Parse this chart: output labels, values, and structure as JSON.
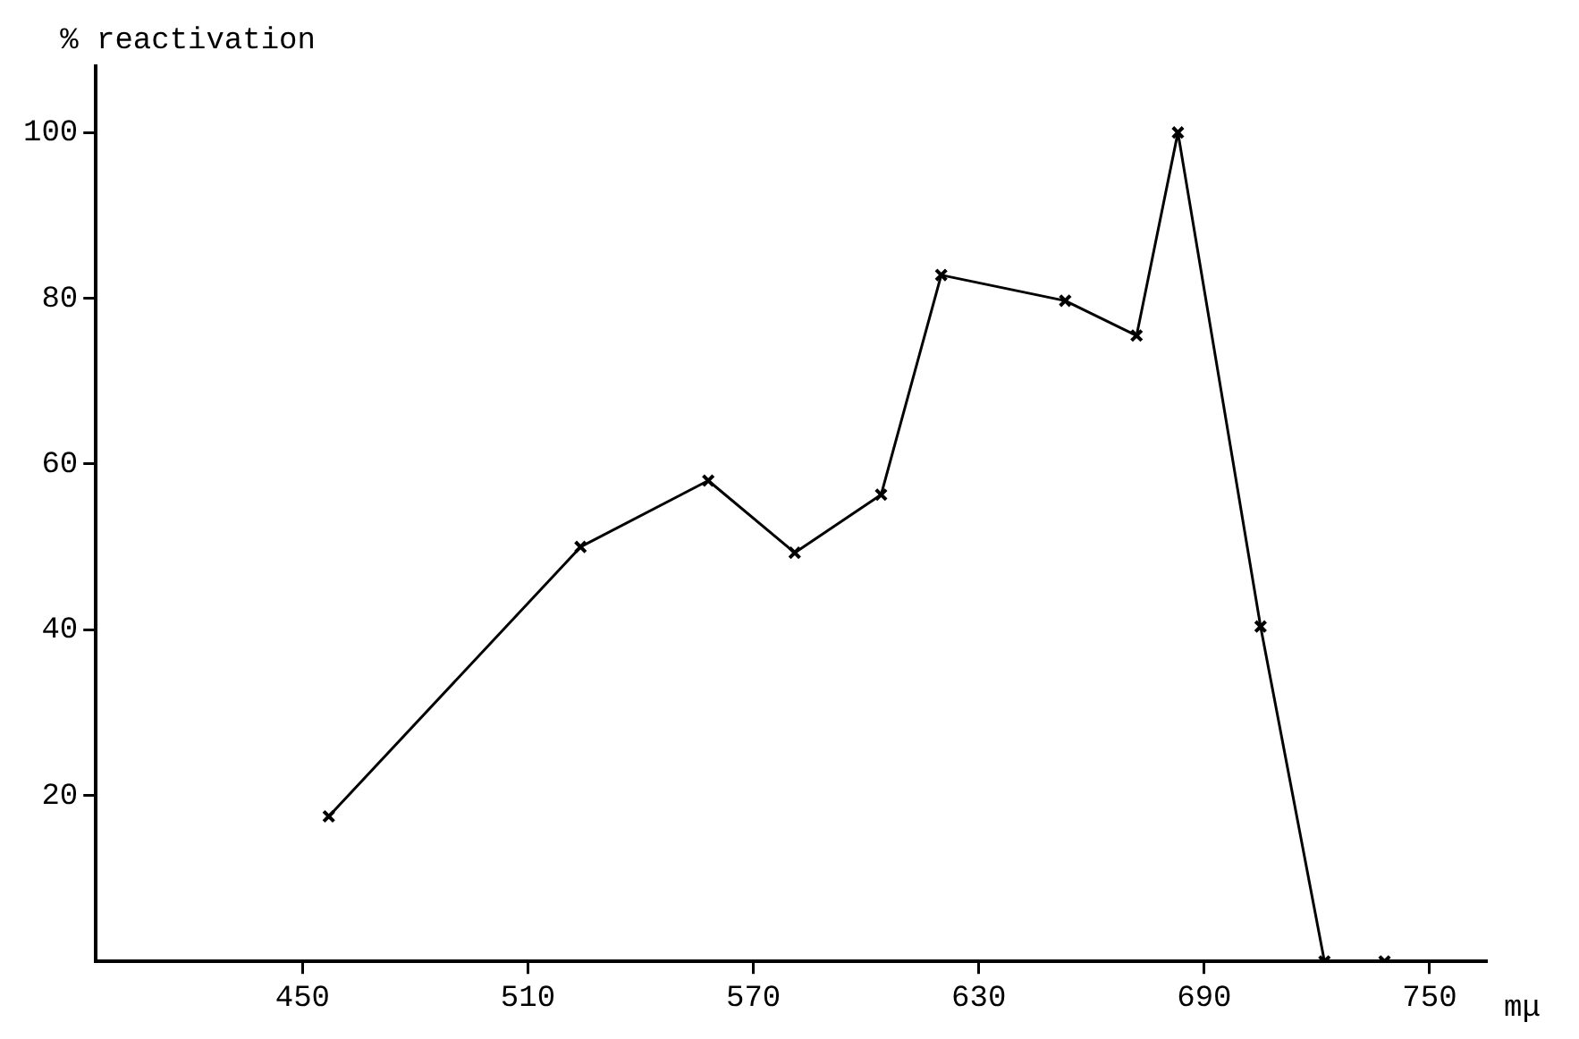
{
  "chart_data": {
    "type": "line",
    "xlabel": "mμ",
    "ylabel": "% reactivation",
    "x": [
      457,
      524,
      558,
      581,
      604,
      620,
      653,
      672,
      683,
      705,
      722,
      738
    ],
    "series": [
      {
        "color": "#000000",
        "values": [
          17.5,
          50,
          58,
          49.3,
          56.3,
          82.8,
          79.7,
          75.5,
          100,
          40.4,
          0,
          0
        ]
      }
    ],
    "xlim": [
      395,
      765
    ],
    "xticks": [
      450,
      510,
      570,
      630,
      690,
      750
    ],
    "ylim": [
      0,
      108
    ],
    "yticks": [
      20,
      40,
      60,
      80,
      100
    ],
    "marker": "cross",
    "line_style": "solid",
    "legend": false
  }
}
